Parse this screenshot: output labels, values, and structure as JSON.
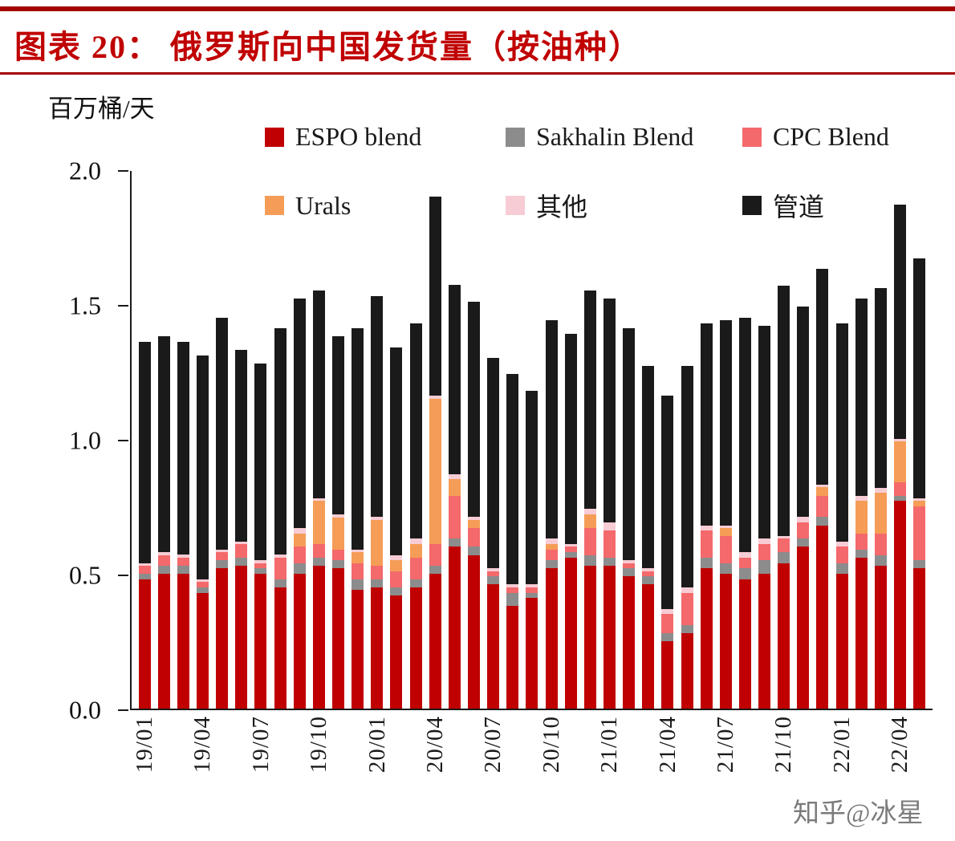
{
  "header": {
    "title": "图表 20： 俄罗斯向中国发货量（按油种）"
  },
  "watermark": "知乎@冰星",
  "chart_data": {
    "type": "bar",
    "stacked": true,
    "title": "俄罗斯向中国发货量（按油种）",
    "unit_label": "百万桶/天",
    "xlabel": "",
    "ylabel": "百万桶/天",
    "ylim": [
      0,
      2.0
    ],
    "yticks": [
      "0.0",
      "0.5",
      "1.0",
      "1.5",
      "2.0"
    ],
    "grid": false,
    "legend_position": "top",
    "xtick_every": 3,
    "x": [
      "19/01",
      "19/02",
      "19/03",
      "19/04",
      "19/05",
      "19/06",
      "19/07",
      "19/08",
      "19/09",
      "19/10",
      "19/11",
      "19/12",
      "20/01",
      "20/02",
      "20/03",
      "20/04",
      "20/05",
      "20/06",
      "20/07",
      "20/08",
      "20/09",
      "20/10",
      "20/11",
      "20/12",
      "21/01",
      "21/02",
      "21/03",
      "21/04",
      "21/05",
      "21/06",
      "21/07",
      "21/08",
      "21/09",
      "21/10",
      "21/11",
      "21/12",
      "22/01",
      "22/02",
      "22/03",
      "22/04",
      "22/05"
    ],
    "series": [
      {
        "name": "ESPO blend",
        "color": "#c00000",
        "values": [
          0.48,
          0.5,
          0.5,
          0.43,
          0.52,
          0.53,
          0.5,
          0.45,
          0.5,
          0.53,
          0.52,
          0.44,
          0.45,
          0.42,
          0.45,
          0.5,
          0.6,
          0.57,
          0.46,
          0.38,
          0.41,
          0.52,
          0.56,
          0.53,
          0.53,
          0.49,
          0.46,
          0.25,
          0.28,
          0.52,
          0.5,
          0.48,
          0.5,
          0.54,
          0.6,
          0.68,
          0.5,
          0.56,
          0.53,
          0.77,
          0.52
        ]
      },
      {
        "name": "Sakhalin Blend",
        "color": "#8c8c8c",
        "values": [
          0.02,
          0.03,
          0.03,
          0.02,
          0.03,
          0.03,
          0.02,
          0.03,
          0.04,
          0.03,
          0.03,
          0.04,
          0.03,
          0.03,
          0.03,
          0.03,
          0.03,
          0.03,
          0.03,
          0.05,
          0.02,
          0.03,
          0.02,
          0.04,
          0.03,
          0.03,
          0.03,
          0.03,
          0.03,
          0.04,
          0.04,
          0.04,
          0.05,
          0.04,
          0.03,
          0.03,
          0.04,
          0.03,
          0.04,
          0.02,
          0.03
        ]
      },
      {
        "name": "CPC Blend",
        "color": "#f4696b",
        "values": [
          0.03,
          0.04,
          0.03,
          0.02,
          0.03,
          0.05,
          0.02,
          0.08,
          0.06,
          0.05,
          0.04,
          0.06,
          0.05,
          0.06,
          0.08,
          0.08,
          0.16,
          0.07,
          0.02,
          0.02,
          0.02,
          0.04,
          0.02,
          0.1,
          0.1,
          0.02,
          0.02,
          0.07,
          0.12,
          0.1,
          0.1,
          0.04,
          0.06,
          0.05,
          0.06,
          0.08,
          0.06,
          0.06,
          0.08,
          0.05,
          0.2
        ]
      },
      {
        "name": "Urals",
        "color": "#f59d56",
        "values": [
          0,
          0,
          0,
          0,
          0,
          0,
          0,
          0,
          0.05,
          0.16,
          0.12,
          0.04,
          0.17,
          0.04,
          0.05,
          0.54,
          0.06,
          0.03,
          0,
          0,
          0,
          0.02,
          0,
          0.05,
          0,
          0,
          0,
          0,
          0,
          0,
          0.03,
          0,
          0,
          0,
          0,
          0.03,
          0,
          0.12,
          0.15,
          0.15,
          0.02
        ]
      },
      {
        "name": "其他",
        "color": "#f7ccd4",
        "values": [
          0.01,
          0.01,
          0.01,
          0.01,
          0.01,
          0.01,
          0.01,
          0.01,
          0.02,
          0.01,
          0.01,
          0.01,
          0.01,
          0.02,
          0.02,
          0.01,
          0.02,
          0.01,
          0.01,
          0.01,
          0.01,
          0.02,
          0.01,
          0.02,
          0.03,
          0.01,
          0.01,
          0.02,
          0.02,
          0.02,
          0.01,
          0.02,
          0.02,
          0.01,
          0.02,
          0.01,
          0.02,
          0.02,
          0.02,
          0.01,
          0.01
        ]
      },
      {
        "name": "管道",
        "color": "#1a1a1a",
        "values": [
          0.82,
          0.8,
          0.79,
          0.83,
          0.86,
          0.71,
          0.73,
          0.84,
          0.85,
          0.77,
          0.66,
          0.82,
          0.82,
          0.77,
          0.8,
          0.74,
          0.7,
          0.8,
          0.78,
          0.78,
          0.72,
          0.81,
          0.78,
          0.81,
          0.83,
          0.86,
          0.75,
          0.79,
          0.82,
          0.75,
          0.76,
          0.87,
          0.79,
          0.93,
          0.78,
          0.8,
          0.81,
          0.73,
          0.74,
          0.87,
          0.89
        ]
      }
    ]
  }
}
